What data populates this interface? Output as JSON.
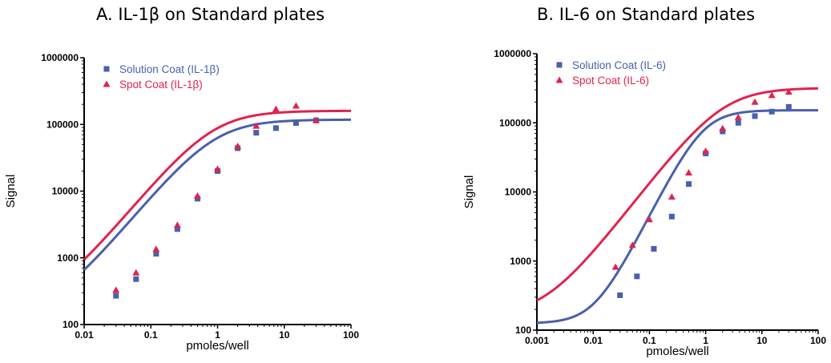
{
  "chart_data": [
    {
      "type": "scatter",
      "title": "A. IL-1β on Standard plates",
      "xlabel": "pmoles/well",
      "ylabel": "Signal",
      "xscale": "log",
      "yscale": "log",
      "xlim": [
        0.01,
        100
      ],
      "ylim": [
        100,
        1000000
      ],
      "xticks": [
        "0.01",
        "0.1",
        "1",
        "10",
        "100"
      ],
      "yticks": [
        "100",
        "1000",
        "10000",
        "100000",
        "1000000"
      ],
      "legend_position": "top-left",
      "series": [
        {
          "name": "Solution Coat (IL-1β)",
          "color": "#4a5fad",
          "marker": "square",
          "x": [
            0.03,
            0.06,
            0.12,
            0.25,
            0.5,
            1,
            2,
            3.8,
            7.5,
            15,
            30
          ],
          "y": [
            270,
            480,
            1150,
            2700,
            7700,
            20000,
            44000,
            75000,
            88000,
            105000,
            115000
          ],
          "curve": {
            "bottom": 130,
            "top": 118000,
            "ec50": 0.9,
            "hill": 1.2
          }
        },
        {
          "name": "Spot Coat (IL-1β)",
          "color": "#e0234e",
          "marker": "triangle",
          "x": [
            0.03,
            0.06,
            0.12,
            0.25,
            0.5,
            1,
            2,
            3.8,
            7.5,
            15,
            30
          ],
          "y": [
            330,
            600,
            1350,
            3100,
            8500,
            21500,
            47000,
            95000,
            170000,
            190000,
            115000
          ],
          "curve": {
            "bottom": 175,
            "top": 160000,
            "ec50": 0.85,
            "hill": 1.2
          }
        }
      ]
    },
    {
      "type": "scatter",
      "title": "B. IL-6 on Standard plates",
      "xlabel": "pmoles/well",
      "ylabel": "Signal",
      "xscale": "log",
      "yscale": "log",
      "xlim": [
        0.001,
        100
      ],
      "ylim": [
        100,
        1000000
      ],
      "xticks": [
        "0.001",
        "0.01",
        "0.1",
        "1",
        "10",
        "100"
      ],
      "yticks": [
        "100",
        "1000",
        "10000",
        "100000",
        "1000000"
      ],
      "legend_position": "top-left",
      "series": [
        {
          "name": "Solution Coat (IL-6)",
          "color": "#4a5fad",
          "marker": "square",
          "x": [
            0.03,
            0.06,
            0.12,
            0.25,
            0.5,
            1,
            2,
            3.8,
            7.5,
            15,
            30
          ],
          "y": [
            320,
            600,
            1500,
            4400,
            13000,
            36000,
            75000,
            100000,
            125000,
            145000,
            170000
          ],
          "curve": {
            "bottom": 125,
            "top": 152000,
            "ec50": 0.9,
            "hill": 1.6
          }
        },
        {
          "name": "Spot Coat (IL-6)",
          "color": "#e0234e",
          "marker": "triangle",
          "x": [
            0.025,
            0.05,
            0.1,
            0.25,
            0.5,
            1,
            2,
            3.8,
            7.5,
            15,
            30
          ],
          "y": [
            820,
            1700,
            4000,
            8500,
            19000,
            39000,
            83000,
            120000,
            200000,
            250000,
            280000
          ],
          "curve": {
            "bottom": 160,
            "top": 320000,
            "ec50": 2.0,
            "hill": 1.05
          }
        }
      ]
    }
  ]
}
